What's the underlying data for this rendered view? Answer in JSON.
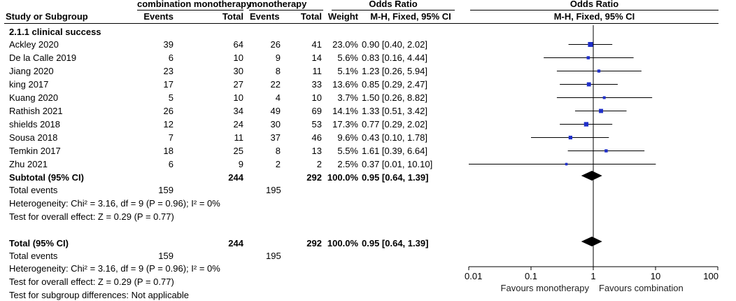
{
  "header": {
    "group1": "combination monotherapy",
    "group2": "monotherapy",
    "or_col_title": "Odds Ratio",
    "or_col_method": "M-H, Fixed, 95% CI",
    "plot_title": "Odds Ratio",
    "plot_method": "M-H, Fixed, 95% CI",
    "study_col": "Study or Subgroup",
    "events1": "Events",
    "total1": "Total",
    "events2": "Events",
    "total2": "Total",
    "weight": "Weight"
  },
  "subgroup_title": "2.1.1 clinical success",
  "subtotal": {
    "label": "Subtotal (95% CI)",
    "total1": "244",
    "total2": "292",
    "weight": "100.0%",
    "ci_text": "0.95 [0.64, 1.39]",
    "total_events_label": "Total events",
    "events1": "159",
    "events2": "195",
    "heterogeneity": "Heterogeneity: Chi² = 3.16, df = 9 (P = 0.96); I² = 0%",
    "overall_effect": "Test for overall effect: Z = 0.29 (P = 0.77)"
  },
  "total": {
    "label": "Total (95% CI)",
    "total1": "244",
    "total2": "292",
    "weight": "100.0%",
    "ci_text": "0.95 [0.64, 1.39]",
    "total_events_label": "Total events",
    "events1": "159",
    "events2": "195",
    "heterogeneity": "Heterogeneity: Chi² = 3.16, df = 9 (P = 0.96); I² = 0%",
    "overall_effect": "Test for overall effect: Z = 0.29 (P = 0.77)",
    "subgroup_diff": "Test for subgroup differences: Not applicable"
  },
  "axis": {
    "left_label": "Favours monotherapy",
    "right_label": "Favours combination"
  },
  "chart_data": {
    "type": "forest",
    "xscale": "log",
    "xlim": [
      0.01,
      100
    ],
    "ticks": [
      {
        "value": 0.01,
        "label": "0.01"
      },
      {
        "value": 0.1,
        "label": "0.1"
      },
      {
        "value": 1,
        "label": "1"
      },
      {
        "value": 10,
        "label": "10"
      },
      {
        "value": 100,
        "label": "100"
      }
    ],
    "studies": [
      {
        "study": "Ackley 2020",
        "events1": "39",
        "total1": "64",
        "events2": "26",
        "total2": "41",
        "weight": "23.0%",
        "weight_value": 23.0,
        "or": 0.9,
        "lo": 0.4,
        "hi": 2.02,
        "ci_text": "0.90 [0.40, 2.02]"
      },
      {
        "study": "De la Calle 2019",
        "events1": "6",
        "total1": "10",
        "events2": "9",
        "total2": "14",
        "weight": "5.6%",
        "weight_value": 5.6,
        "or": 0.83,
        "lo": 0.16,
        "hi": 4.44,
        "ci_text": "0.83 [0.16, 4.44]"
      },
      {
        "study": "Jiang 2020",
        "events1": "23",
        "total1": "30",
        "events2": "8",
        "total2": "11",
        "weight": "5.1%",
        "weight_value": 5.1,
        "or": 1.23,
        "lo": 0.26,
        "hi": 5.94,
        "ci_text": "1.23 [0.26, 5.94]"
      },
      {
        "study": "king 2017",
        "events1": "17",
        "total1": "27",
        "events2": "22",
        "total2": "33",
        "weight": "13.6%",
        "weight_value": 13.6,
        "or": 0.85,
        "lo": 0.29,
        "hi": 2.47,
        "ci_text": "0.85 [0.29, 2.47]"
      },
      {
        "study": "Kuang 2020",
        "events1": "5",
        "total1": "10",
        "events2": "4",
        "total2": "10",
        "weight": "3.7%",
        "weight_value": 3.7,
        "or": 1.5,
        "lo": 0.26,
        "hi": 8.82,
        "ci_text": "1.50 [0.26, 8.82]"
      },
      {
        "study": "Rathish 2021",
        "events1": "26",
        "total1": "34",
        "events2": "49",
        "total2": "69",
        "weight": "14.1%",
        "weight_value": 14.1,
        "or": 1.33,
        "lo": 0.51,
        "hi": 3.42,
        "ci_text": "1.33 [0.51, 3.42]"
      },
      {
        "study": "shields 2018",
        "events1": "12",
        "total1": "24",
        "events2": "30",
        "total2": "53",
        "weight": "17.3%",
        "weight_value": 17.3,
        "or": 0.77,
        "lo": 0.29,
        "hi": 2.02,
        "ci_text": "0.77 [0.29, 2.02]"
      },
      {
        "study": "Sousa 2018",
        "events1": "7",
        "total1": "11",
        "events2": "37",
        "total2": "46",
        "weight": "9.6%",
        "weight_value": 9.6,
        "or": 0.43,
        "lo": 0.1,
        "hi": 1.78,
        "ci_text": "0.43 [0.10, 1.78]"
      },
      {
        "study": "Temkin 2017",
        "events1": "18",
        "total1": "25",
        "events2": "8",
        "total2": "13",
        "weight": "5.5%",
        "weight_value": 5.5,
        "or": 1.61,
        "lo": 0.39,
        "hi": 6.64,
        "ci_text": "1.61 [0.39, 6.64]"
      },
      {
        "study": "Zhu 2021",
        "events1": "6",
        "total1": "9",
        "events2": "2",
        "total2": "2",
        "weight": "2.5%",
        "weight_value": 2.5,
        "or": 0.37,
        "lo": 0.01,
        "hi": 10.1,
        "ci_text": "0.37 [0.01, 10.10]"
      }
    ],
    "pooled": [
      {
        "name": "Subtotal (95% CI)",
        "or": 0.95,
        "lo": 0.64,
        "hi": 1.39
      },
      {
        "name": "Total (95% CI)",
        "or": 0.95,
        "lo": 0.64,
        "hi": 1.39
      }
    ]
  }
}
